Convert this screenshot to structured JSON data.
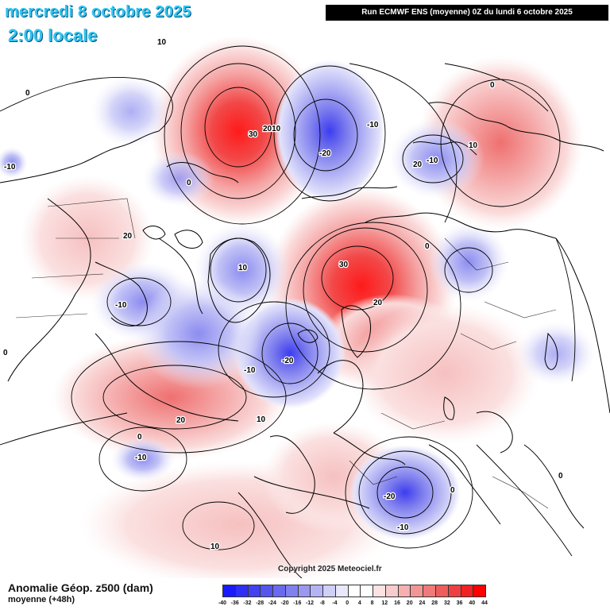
{
  "header": {
    "date_title": "mercredi 8 octobre 2025",
    "time_title": "2:00 locale",
    "run_banner": "Run ECMWF ENS (moyenne) 0Z du lundi 6 octobre 2025"
  },
  "map": {
    "copyright": "Copyright 2025 Meteociel.fr",
    "contour_labels": [
      "0",
      "10",
      "20",
      "30",
      "-10",
      "-20",
      "2010",
      "0",
      "-10",
      "-20",
      "20",
      "10",
      "30",
      "20",
      "-10",
      "-20",
      "-10",
      "0",
      "10",
      "-10",
      "0",
      "20",
      "10",
      "-10",
      "0",
      "-10",
      "0",
      "0",
      "10",
      "0"
    ]
  },
  "footer": {
    "variable_title": "Anomalie Géop. z500 (dam)",
    "variable_sub": "moyenne   (+48h)"
  },
  "colorbar": {
    "colors": [
      "#1a1aff",
      "#2e2ef5",
      "#4141f0",
      "#5555ee",
      "#6a6aee",
      "#8080ee",
      "#9999f0",
      "#b4b4f5",
      "#cfcff8",
      "#e8e8fb",
      "#ffffff",
      "#ffffff",
      "#fbe3e3",
      "#f8cccc",
      "#f5b0b0",
      "#f29595",
      "#f07a7a",
      "#ee5c5c",
      "#ee4040",
      "#f02222",
      "#ff0000"
    ],
    "ticks": [
      "-40",
      "-36",
      "-32",
      "-28",
      "-24",
      "-20",
      "-16",
      "-12",
      "-8",
      "-4",
      "0",
      "4",
      "8",
      "12",
      "16",
      "20",
      "24",
      "28",
      "32",
      "36",
      "40",
      "44"
    ]
  }
}
